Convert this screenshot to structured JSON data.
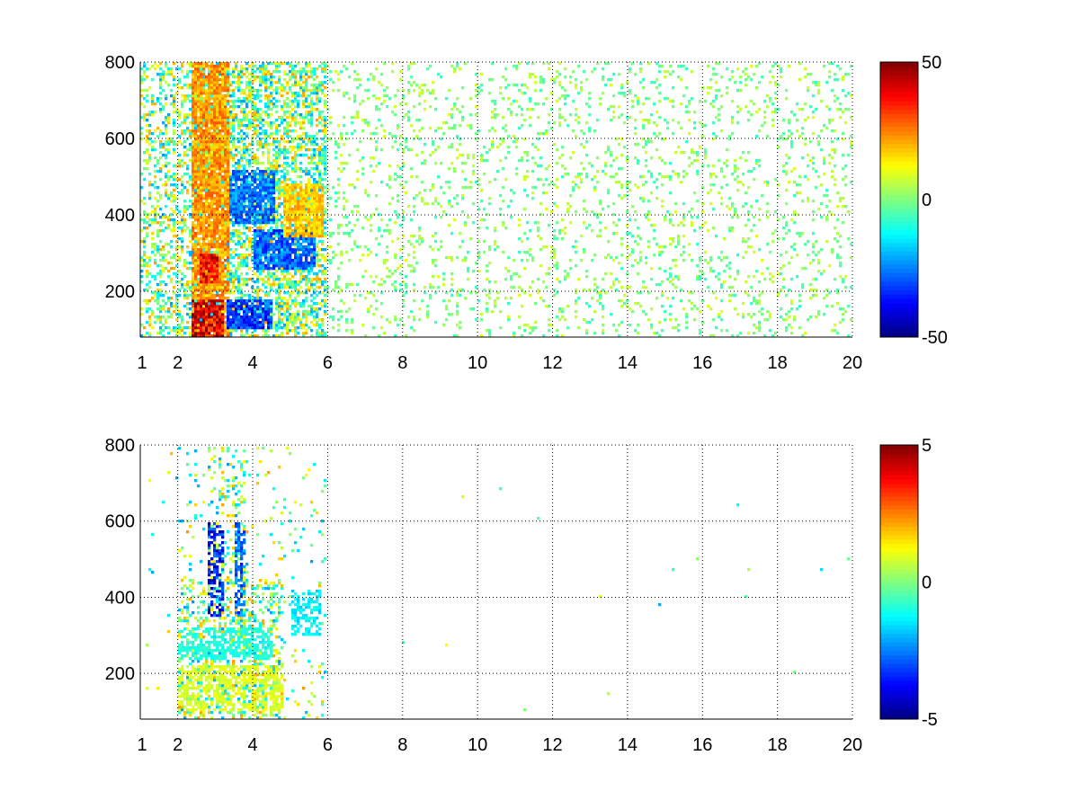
{
  "chart_data": [
    {
      "type": "heatmap",
      "title": "",
      "xlabel": "",
      "ylabel": "",
      "x_ticks": [
        1,
        2,
        4,
        6,
        8,
        10,
        12,
        14,
        16,
        18,
        20
      ],
      "y_ticks": [
        200,
        400,
        600,
        800
      ],
      "xlim": [
        1,
        20
      ],
      "ylim": [
        80,
        800
      ],
      "grid": true,
      "colormap": "jet",
      "colorbar": {
        "min": -50,
        "max": 50,
        "ticks": [
          50,
          0,
          -50
        ]
      },
      "regions": [
        {
          "x": [
            2.4,
            3.4
          ],
          "y": [
            80,
            800
          ],
          "value": 25,
          "note_free": true
        },
        {
          "x": [
            2.4,
            3.2
          ],
          "y": [
            80,
            180
          ],
          "value": 45
        },
        {
          "x": [
            2.6,
            3.1
          ],
          "y": [
            220,
            300
          ],
          "value": 40
        },
        {
          "x": [
            3.3,
            4.5
          ],
          "y": [
            100,
            180
          ],
          "value": -35
        },
        {
          "x": [
            3.4,
            4.6
          ],
          "y": [
            380,
            520
          ],
          "value": -28
        },
        {
          "x": [
            4.0,
            5.7
          ],
          "y": [
            260,
            360
          ],
          "value": -30
        },
        {
          "x": [
            4.8,
            5.9
          ],
          "y": [
            340,
            480
          ],
          "value": 20
        }
      ]
    },
    {
      "type": "heatmap",
      "title": "",
      "xlabel": "",
      "ylabel": "",
      "x_ticks": [
        1,
        2,
        4,
        6,
        8,
        10,
        12,
        14,
        16,
        18,
        20
      ],
      "y_ticks": [
        200,
        400,
        600,
        800
      ],
      "xlim": [
        1,
        20
      ],
      "ylim": [
        80,
        800
      ],
      "grid": true,
      "colormap": "jet",
      "colorbar": {
        "min": -5,
        "max": 5,
        "ticks": [
          5,
          0,
          -5
        ]
      },
      "regions": [
        {
          "x": [
            2.8,
            3.2
          ],
          "y": [
            350,
            600
          ],
          "value": -4
        },
        {
          "x": [
            3.5,
            3.8
          ],
          "y": [
            350,
            600
          ],
          "value": -3
        },
        {
          "x": [
            2.0,
            4.8
          ],
          "y": [
            100,
            220
          ],
          "value": 1
        },
        {
          "x": [
            2.0,
            4.5
          ],
          "y": [
            240,
            320
          ],
          "value": -1
        },
        {
          "x": [
            5.0,
            5.8
          ],
          "y": [
            300,
            420
          ],
          "value": -1.5
        }
      ]
    }
  ]
}
